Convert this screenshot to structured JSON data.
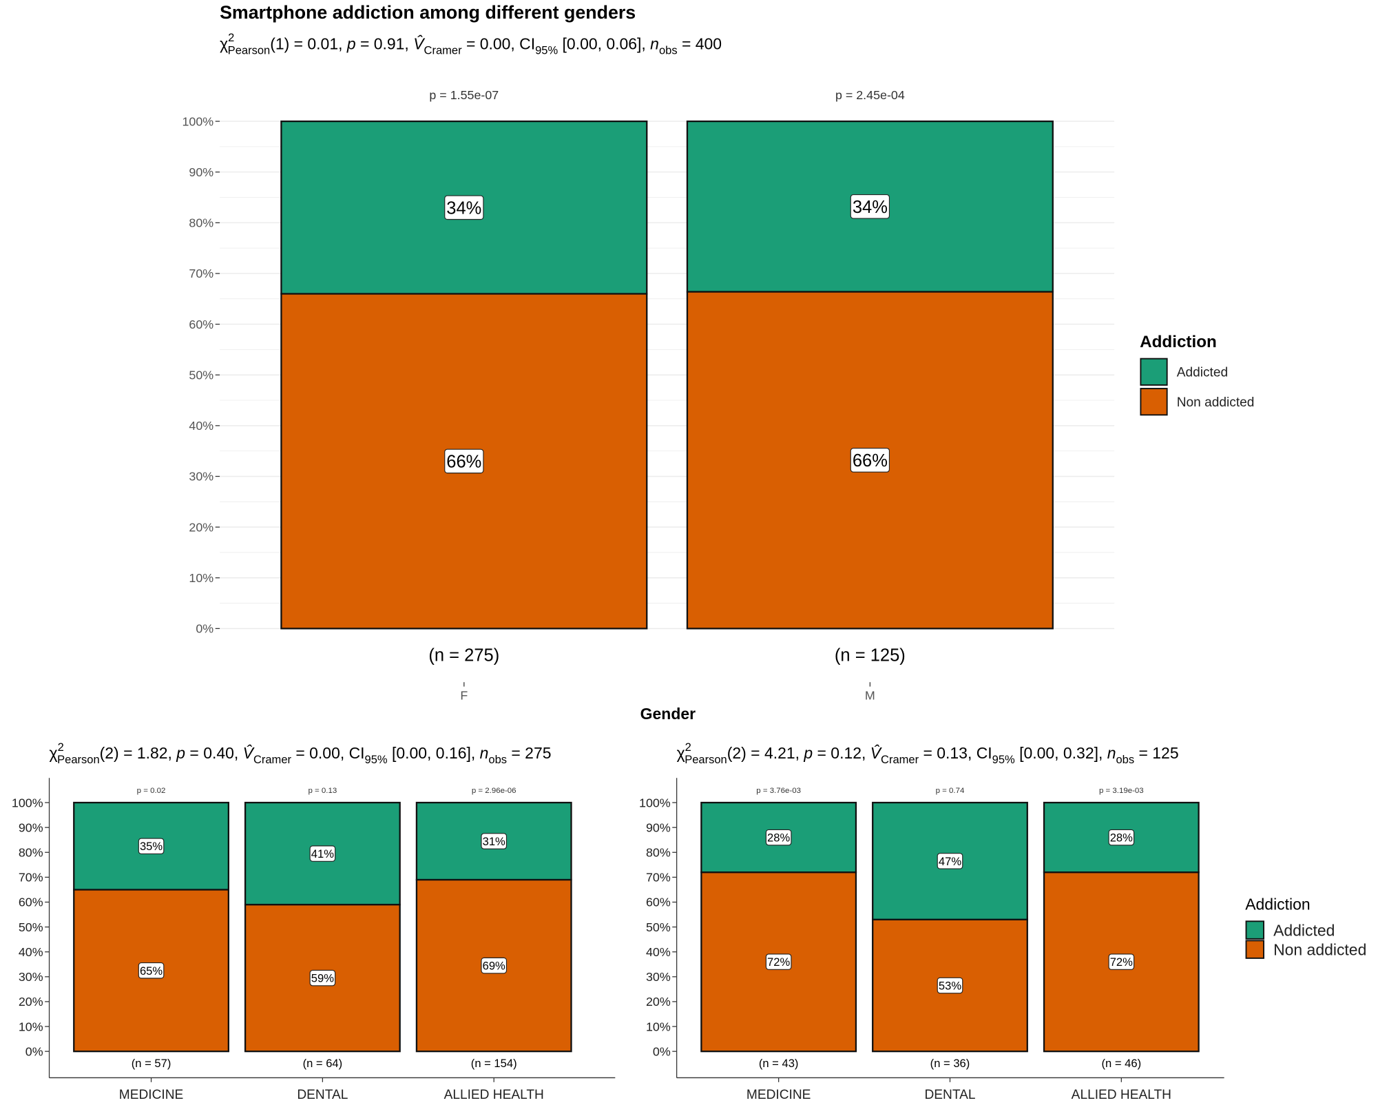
{
  "colors": {
    "addicted": "#1b9e77",
    "non_addicted": "#d95f02",
    "grid": "#ebebeb"
  },
  "chart_data": [
    {
      "type": "bar",
      "stacked": true,
      "title": "Smartphone addiction among different genders",
      "subtitle": [
        [
          "χ",
          ""
        ],
        [
          "2",
          "sup"
        ],
        [
          "Pearson",
          "sub"
        ],
        [
          "(1) = 0.01, ",
          ""
        ],
        [
          "p",
          "i"
        ],
        [
          " = 0.91, ",
          ""
        ],
        [
          "V̂",
          "i"
        ],
        [
          "Cramer",
          "sub"
        ],
        [
          " = 0.00, CI",
          ""
        ],
        [
          "95%",
          "sub"
        ],
        [
          " [0.00, 0.06], ",
          ""
        ],
        [
          "n",
          "i"
        ],
        [
          "obs",
          "sub"
        ],
        [
          " = 400",
          ""
        ]
      ],
      "xlabel": "Gender",
      "ylabel": "",
      "ylim": [
        0,
        100
      ],
      "yticks": [
        "0%",
        "10%",
        "20%",
        "30%",
        "40%",
        "50%",
        "60%",
        "70%",
        "80%",
        "90%",
        "100%"
      ],
      "categories": [
        "F",
        "M"
      ],
      "n_labels": [
        "(n = 275)",
        "(n = 125)"
      ],
      "p_labels": [
        "p = 1.55e-07",
        "p = 2.45e-04"
      ],
      "series": [
        {
          "name": "Non addicted",
          "values": [
            66,
            66.4
          ],
          "labels": [
            "66%",
            "66%"
          ]
        },
        {
          "name": "Addicted",
          "values": [
            34,
            33.6
          ],
          "labels": [
            "34%",
            "34%"
          ]
        }
      ],
      "legend": {
        "title": "Addiction",
        "entries": [
          "Addicted",
          "Non addicted"
        ],
        "position": "right"
      }
    },
    {
      "type": "bar",
      "stacked": true,
      "subtitle": [
        [
          "χ",
          ""
        ],
        [
          "2",
          "sup"
        ],
        [
          "Pearson",
          "sub"
        ],
        [
          "(2) = 1.82, ",
          ""
        ],
        [
          "p",
          "i"
        ],
        [
          " = 0.40, ",
          ""
        ],
        [
          "V̂",
          "i"
        ],
        [
          "Cramer",
          "sub"
        ],
        [
          " = 0.00, CI",
          ""
        ],
        [
          "95%",
          "sub"
        ],
        [
          " [0.00, 0.16], ",
          ""
        ],
        [
          "n",
          "i"
        ],
        [
          "obs",
          "sub"
        ],
        [
          " = 275",
          ""
        ]
      ],
      "ylim": [
        0,
        100
      ],
      "yticks": [
        "0%",
        "10%",
        "20%",
        "30%",
        "40%",
        "50%",
        "60%",
        "70%",
        "80%",
        "90%",
        "100%"
      ],
      "categories": [
        "MEDICINE",
        "DENTAL",
        "ALLIED HEALTH"
      ],
      "n_labels": [
        "(n = 57)",
        "(n = 64)",
        "(n = 154)"
      ],
      "p_labels": [
        "p = 0.02",
        "p = 0.13",
        "p = 2.96e-06"
      ],
      "series": [
        {
          "name": "Non addicted",
          "values": [
            65,
            59,
            69
          ],
          "labels": [
            "65%",
            "59%",
            "69%"
          ]
        },
        {
          "name": "Addicted",
          "values": [
            35,
            41,
            31
          ],
          "labels": [
            "35%",
            "41%",
            "31%"
          ]
        }
      ]
    },
    {
      "type": "bar",
      "stacked": true,
      "subtitle": [
        [
          "χ",
          ""
        ],
        [
          "2",
          "sup"
        ],
        [
          "Pearson",
          "sub"
        ],
        [
          "(2) = 4.21, ",
          ""
        ],
        [
          "p",
          "i"
        ],
        [
          " = 0.12, ",
          ""
        ],
        [
          "V̂",
          "i"
        ],
        [
          "Cramer",
          "sub"
        ],
        [
          " = 0.13, CI",
          ""
        ],
        [
          "95%",
          "sub"
        ],
        [
          " [0.00, 0.32], ",
          ""
        ],
        [
          "n",
          "i"
        ],
        [
          "obs",
          "sub"
        ],
        [
          " = 125",
          ""
        ]
      ],
      "ylim": [
        0,
        100
      ],
      "yticks": [
        "0%",
        "10%",
        "20%",
        "30%",
        "40%",
        "50%",
        "60%",
        "70%",
        "80%",
        "90%",
        "100%"
      ],
      "categories": [
        "MEDICINE",
        "DENTAL",
        "ALLIED HEALTH"
      ],
      "n_labels": [
        "(n = 43)",
        "(n = 36)",
        "(n = 46)"
      ],
      "p_labels": [
        "p = 3.76e-03",
        "p = 0.74",
        "p = 3.19e-03"
      ],
      "series": [
        {
          "name": "Non addicted",
          "values": [
            72,
            53,
            72
          ],
          "labels": [
            "72%",
            "53%",
            "72%"
          ]
        },
        {
          "name": "Addicted",
          "values": [
            28,
            47,
            28
          ],
          "labels": [
            "28%",
            "47%",
            "28%"
          ]
        }
      ],
      "legend": {
        "title": "Addiction",
        "entries": [
          "Addicted",
          "Non addicted"
        ],
        "position": "right"
      }
    }
  ]
}
